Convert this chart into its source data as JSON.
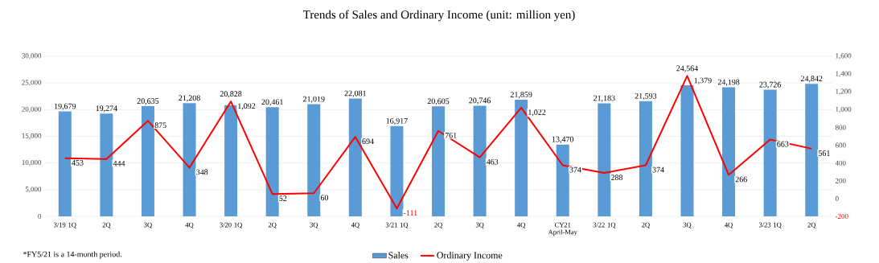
{
  "chart_data": {
    "type": "bar",
    "title": "Trends of Sales and Ordinary Income (unit: million yen)",
    "categories": [
      "3/19 1Q",
      "2Q",
      "3Q",
      "4Q",
      "3/20 1Q",
      "2Q",
      "3Q",
      "4Q",
      "3/21 1Q",
      "2Q",
      "3Q",
      "4Q",
      "CY21 April-May",
      "3/22 1Q",
      "2Q",
      "3Q",
      "4Q",
      "3/23 1Q",
      "2Q"
    ],
    "series": [
      {
        "name": "Sales",
        "color": "#5b9bd5",
        "values": [
          19679,
          19274,
          20635,
          21208,
          20828,
          20461,
          21019,
          22081,
          16917,
          20605,
          20746,
          21859,
          13470,
          21183,
          21593,
          24564,
          24198,
          23726,
          24842
        ],
        "value_labels": [
          "19,679",
          "19,274",
          "20,635",
          "21,208",
          "20,828",
          "20,461",
          "21,019",
          "22,081",
          "16,917",
          "20,605",
          "20,746",
          "21,859",
          "13,470",
          "21,183",
          "21,593",
          "24,564",
          "24,198",
          "23,726",
          "24,842"
        ]
      },
      {
        "name": "Ordinary Income",
        "type": "line",
        "axis": "y2",
        "color": "#ff0000",
        "values": [
          453,
          444,
          875,
          348,
          1092,
          52,
          60,
          694,
          -111,
          761,
          463,
          1022,
          374,
          288,
          374,
          1379,
          266,
          663,
          561
        ],
        "value_labels": [
          "453",
          "444",
          "875",
          "348",
          "1,092",
          "52",
          "60",
          "694",
          "-111",
          "761",
          "463",
          "1,022",
          "374",
          "288",
          "374",
          "1,379",
          "266",
          "663",
          "561"
        ]
      }
    ],
    "ylim": [
      0,
      30000
    ],
    "yticks": [
      0,
      {
        "value": 5000,
        "label": "5,000"
      },
      {
        "value": 10000,
        "label": "10,000"
      },
      {
        "value": 15000,
        "label": "15,000"
      },
      {
        "value": 20000,
        "label": "20,000"
      },
      {
        "value": 25000,
        "label": "25,000"
      },
      {
        "value": 30000,
        "label": "30,000"
      }
    ],
    "y2lim": [
      -200,
      1600
    ],
    "y2ticks": [
      -200,
      0,
      200,
      400,
      600,
      800,
      {
        "value": 1000,
        "label": "1,000"
      },
      {
        "value": 1200,
        "label": "1,200"
      },
      {
        "value": 1400,
        "label": "1,400"
      },
      {
        "value": 1600,
        "label": "1,600"
      }
    ],
    "grid": "y",
    "legend": "bottom",
    "marker": "none",
    "line_style": "solid",
    "annotations": [
      "*FY5/21 is a 14-month period."
    ]
  }
}
